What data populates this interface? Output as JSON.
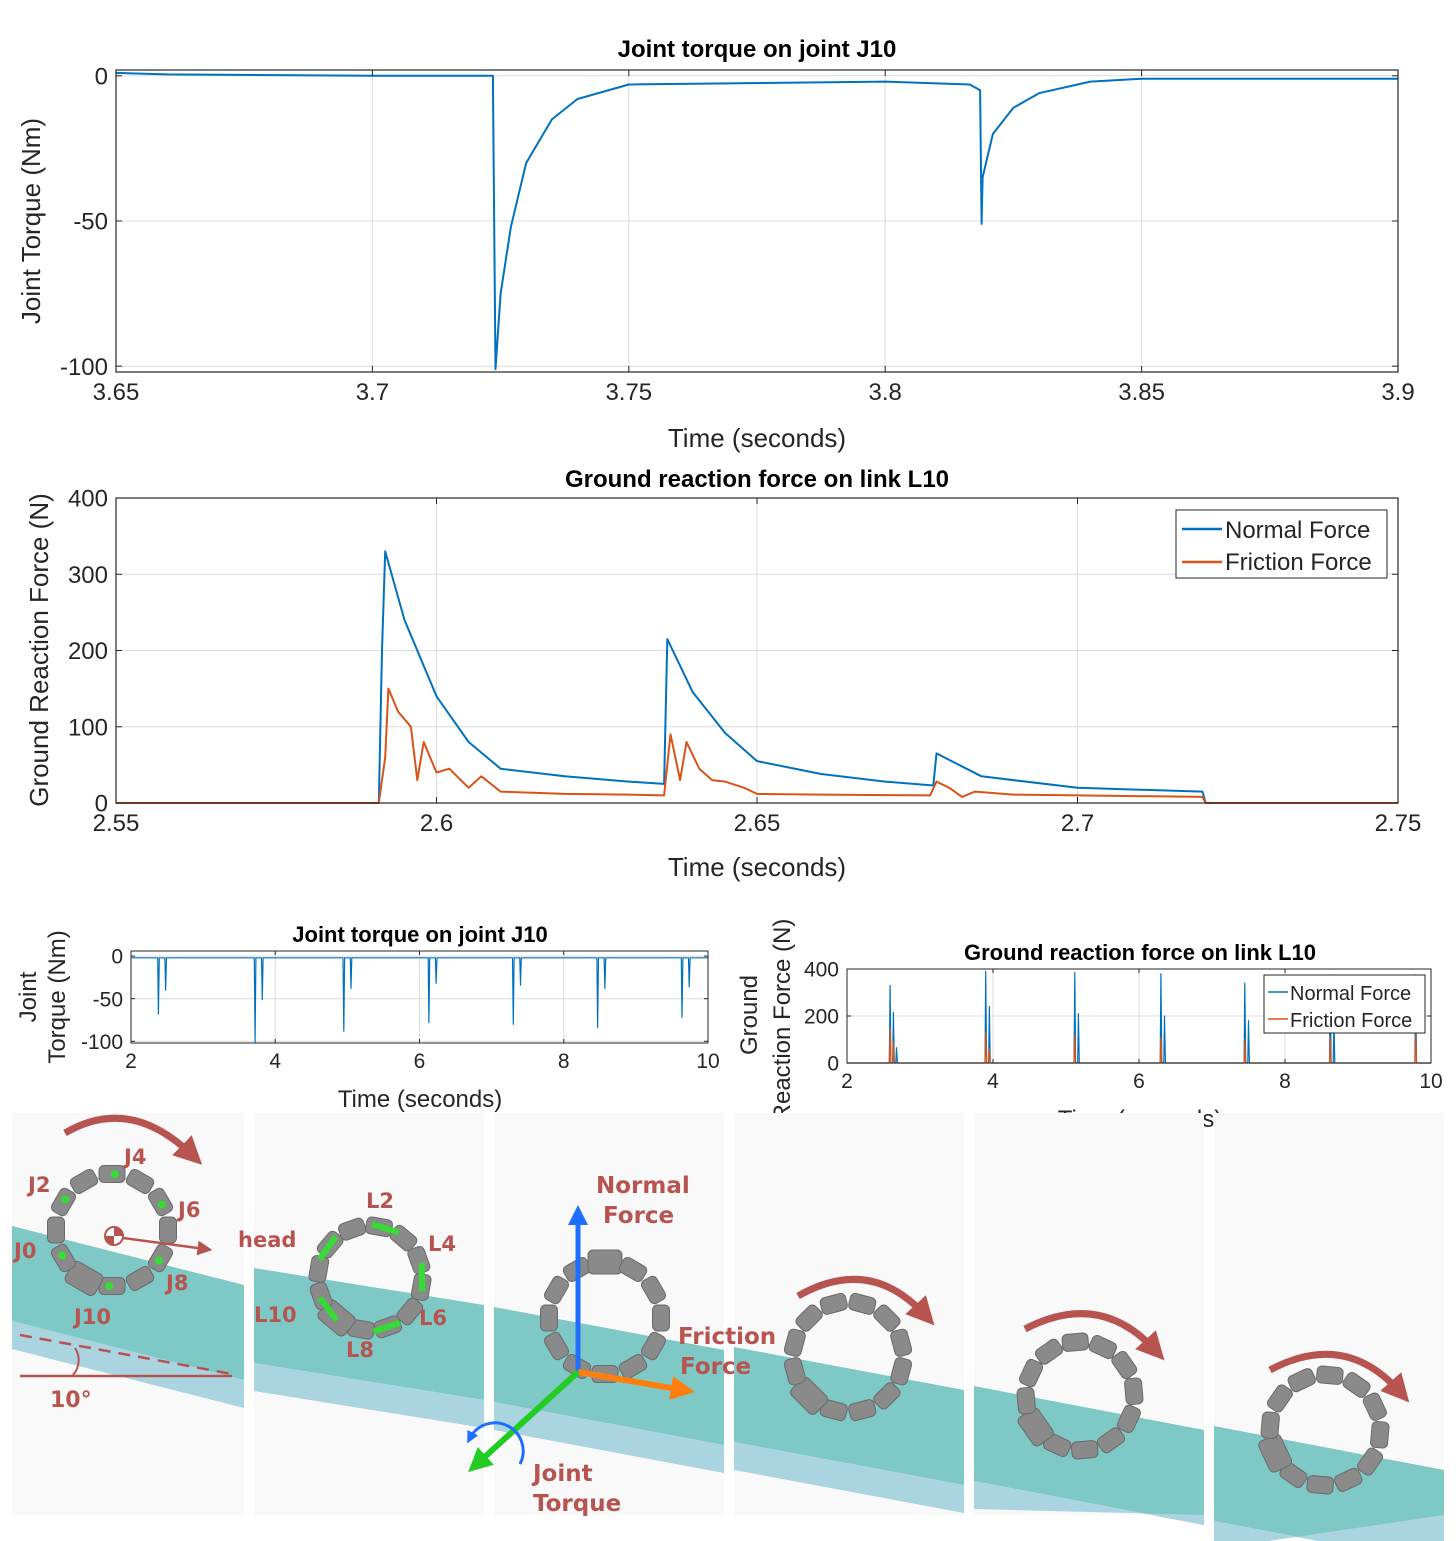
{
  "chart_data": [
    {
      "id": "c1",
      "type": "line",
      "title": "Joint torque on joint J10",
      "xlabel": "Time (seconds)",
      "ylabel": "Joint Torque (Nm)",
      "xlim": [
        3.65,
        3.9
      ],
      "ylim": [
        -102,
        2
      ],
      "xticks": [
        3.65,
        3.7,
        3.75,
        3.8,
        3.85,
        3.9
      ],
      "xticklabels": [
        "3.65",
        "3.7",
        "3.75",
        "3.8",
        "3.85",
        "3.9"
      ],
      "yticks": [
        0,
        -50,
        -100
      ],
      "yticklabels": [
        "0",
        "-50",
        "-100"
      ],
      "grid": true,
      "series": [
        {
          "color": "#0072bd",
          "x": [
            3.65,
            3.66,
            3.7,
            3.7235,
            3.7237,
            3.724,
            3.725,
            3.727,
            3.73,
            3.735,
            3.74,
            3.75,
            3.8,
            3.8165,
            3.8185,
            3.8188,
            3.819,
            3.821,
            3.825,
            3.83,
            3.84,
            3.85,
            3.9
          ],
          "y": [
            1,
            0.5,
            0,
            0,
            -40,
            -101,
            -75,
            -52,
            -30,
            -15,
            -8,
            -3,
            -2,
            -3,
            -5,
            -51,
            -35,
            -20,
            -11,
            -6,
            -2,
            -1,
            -1
          ]
        }
      ]
    },
    {
      "id": "c2",
      "type": "line",
      "title": "Ground reaction force on link L10",
      "xlabel": "Time (seconds)",
      "ylabel": "Ground Reaction Force (N)",
      "xlim": [
        2.55,
        2.75
      ],
      "ylim": [
        0,
        400
      ],
      "xticks": [
        2.55,
        2.6,
        2.65,
        2.7,
        2.75
      ],
      "xticklabels": [
        "2.55",
        "2.6",
        "2.65",
        "2.7",
        "2.75"
      ],
      "yticks": [
        0,
        100,
        200,
        300,
        400
      ],
      "yticklabels": [
        "0",
        "100",
        "200",
        "300",
        "400"
      ],
      "grid": true,
      "legend": "top-right",
      "series": [
        {
          "name": "Normal Force",
          "color": "#0072bd",
          "x": [
            2.55,
            2.591,
            2.5915,
            2.592,
            2.595,
            2.6,
            2.605,
            2.61,
            2.62,
            2.63,
            2.6355,
            2.636,
            2.64,
            2.645,
            2.65,
            2.66,
            2.67,
            2.6775,
            2.678,
            2.685,
            2.7,
            2.7195,
            2.72,
            2.75
          ],
          "y": [
            0,
            0,
            200,
            330,
            240,
            140,
            80,
            45,
            35,
            28,
            25,
            215,
            145,
            92,
            55,
            38,
            28,
            23,
            65,
            35,
            20,
            15,
            0,
            0
          ]
        },
        {
          "name": "Friction Force",
          "color": "#d95319",
          "x": [
            2.55,
            2.591,
            2.592,
            2.5925,
            2.594,
            2.596,
            2.597,
            2.598,
            2.6,
            2.602,
            2.605,
            2.607,
            2.61,
            2.62,
            2.63,
            2.6355,
            2.6365,
            2.638,
            2.639,
            2.641,
            2.643,
            2.645,
            2.648,
            2.65,
            2.66,
            2.677,
            2.678,
            2.68,
            2.682,
            2.684,
            2.69,
            2.7,
            2.7195,
            2.72,
            2.75
          ],
          "y": [
            0,
            0,
            60,
            150,
            120,
            100,
            30,
            80,
            40,
            45,
            20,
            35,
            15,
            12,
            11,
            10,
            90,
            30,
            80,
            45,
            30,
            28,
            20,
            12,
            11,
            10,
            28,
            20,
            8,
            15,
            11,
            10,
            8,
            0,
            0
          ]
        }
      ]
    },
    {
      "id": "c3",
      "type": "line",
      "title": "Joint torque on joint J10",
      "xlabel": "Time (seconds)",
      "ylabel": [
        "Joint",
        "Torque (Nm)"
      ],
      "xlim": [
        2,
        10
      ],
      "ylim": [
        -102,
        6
      ],
      "xticks": [
        2,
        4,
        6,
        8,
        10
      ],
      "xticklabels": [
        "2",
        "4",
        "6",
        "8",
        "10"
      ],
      "yticks": [
        0,
        -50,
        -100
      ],
      "yticklabels": [
        "0",
        "-50",
        "-100"
      ],
      "grid": true,
      "series": [
        {
          "color": "#0072bd",
          "spikes": [
            [
              2.38,
              -68
            ],
            [
              2.48,
              -40
            ],
            [
              3.72,
              -101
            ],
            [
              3.82,
              -51
            ],
            [
              4.95,
              -88
            ],
            [
              5.05,
              -38
            ],
            [
              6.13,
              -78
            ],
            [
              6.23,
              -32
            ],
            [
              7.3,
              -80
            ],
            [
              7.4,
              -34
            ],
            [
              8.47,
              -84
            ],
            [
              8.57,
              -38
            ],
            [
              9.64,
              -72
            ],
            [
              9.74,
              -36
            ]
          ],
          "baseline": -2
        }
      ]
    },
    {
      "id": "c4",
      "type": "line",
      "title": "Ground reaction force on link L10",
      "xlabel": "Time (seconds)",
      "ylabel": [
        "Ground",
        "Reaction Force (N)"
      ],
      "xlim": [
        2,
        10
      ],
      "ylim": [
        0,
        400
      ],
      "xticks": [
        2,
        4,
        6,
        8,
        10
      ],
      "xticklabels": [
        "2",
        "4",
        "6",
        "8",
        "10"
      ],
      "yticks": [
        0,
        200,
        400
      ],
      "yticklabels": [
        "0",
        "200",
        "400"
      ],
      "grid": true,
      "legend": "top-right",
      "series": [
        {
          "name": "Normal Force",
          "color": "#0072bd",
          "spikes": [
            [
              2.59,
              330
            ],
            [
              2.636,
              215
            ],
            [
              2.678,
              65
            ],
            [
              3.9,
              390
            ],
            [
              3.95,
              240
            ],
            [
              5.12,
              385
            ],
            [
              5.17,
              210
            ],
            [
              6.3,
              380
            ],
            [
              6.35,
              200
            ],
            [
              7.45,
              340
            ],
            [
              7.5,
              180
            ],
            [
              8.62,
              375
            ],
            [
              8.67,
              190
            ],
            [
              9.79,
              375
            ]
          ]
        },
        {
          "name": "Friction Force",
          "color": "#d95319",
          "spikes": [
            [
              2.59,
              150
            ],
            [
              2.636,
              90
            ],
            [
              3.9,
              130
            ],
            [
              3.95,
              60
            ],
            [
              5.12,
              120
            ],
            [
              6.3,
              110
            ],
            [
              7.45,
              100
            ],
            [
              8.62,
              110
            ],
            [
              9.79,
              120
            ]
          ]
        }
      ]
    }
  ],
  "figure_labels": {
    "joints": [
      "J0",
      "J2",
      "J4",
      "J6",
      "J8",
      "J10"
    ],
    "links": [
      "L2",
      "L4",
      "L6",
      "L8",
      "L10"
    ],
    "head": "head",
    "angle": "10°",
    "normal_force": [
      "Normal",
      "Force"
    ],
    "friction_force": [
      "Friction",
      "Force"
    ],
    "joint_torque": [
      "Joint",
      "Torque"
    ]
  },
  "colors": {
    "label": "#b85450",
    "slope_top": "#7ec8c6",
    "slope_side": "#a9d4e0",
    "robot": "#8a8a8a",
    "normal_arrow": "#1f6fff",
    "friction_arrow": "#ff7f0e",
    "torque_arrow": "#22cc22",
    "marker": "#33dd33",
    "rotation_arrow": "#b85450"
  }
}
